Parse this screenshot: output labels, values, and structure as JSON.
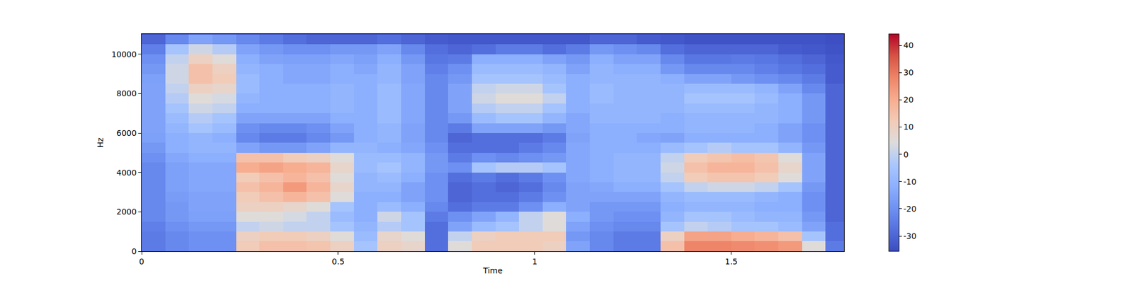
{
  "chart_data": {
    "type": "heatmap",
    "x_label": "Time",
    "y_label": "Hz",
    "x": [
      0,
      0.06,
      0.12,
      0.18,
      0.24,
      0.3,
      0.36,
      0.42,
      0.48,
      0.54,
      0.6,
      0.66,
      0.72,
      0.78,
      0.84,
      0.9,
      0.96,
      1.02,
      1.08,
      1.14,
      1.2,
      1.26,
      1.32,
      1.38,
      1.44,
      1.5,
      1.56,
      1.62,
      1.68,
      1.74,
      1.8
    ],
    "y": [
      0,
      500,
      1000,
      1500,
      2000,
      2500,
      3000,
      3500,
      4000,
      4500,
      5000,
      5500,
      6000,
      6500,
      7000,
      7500,
      8000,
      8500,
      9000,
      9500,
      10000,
      10500,
      11000
    ],
    "z": [
      [
        -25,
        -22,
        -20,
        -20,
        12,
        15,
        15,
        14,
        10,
        -5,
        10,
        8,
        -28,
        5,
        12,
        12,
        12,
        10,
        -15,
        -22,
        -25,
        -25,
        15,
        28,
        28,
        27,
        26,
        24,
        5,
        -25
      ],
      [
        -25,
        -22,
        -20,
        -20,
        10,
        12,
        12,
        10,
        5,
        -8,
        8,
        5,
        -28,
        0,
        10,
        12,
        12,
        12,
        -18,
        -22,
        -25,
        -25,
        10,
        22,
        22,
        20,
        18,
        15,
        -5,
        -28
      ],
      [
        -24,
        -20,
        -18,
        -18,
        0,
        2,
        0,
        0,
        -5,
        -10,
        -2,
        -5,
        -28,
        -15,
        -8,
        -5,
        0,
        5,
        -15,
        -20,
        -22,
        -22,
        -5,
        0,
        -2,
        -5,
        -5,
        -8,
        -15,
        -28
      ],
      [
        -22,
        -18,
        -16,
        -16,
        5,
        5,
        3,
        0,
        -8,
        -12,
        2,
        -5,
        -25,
        -20,
        -15,
        -10,
        0,
        5,
        -12,
        -18,
        -20,
        -20,
        -10,
        -5,
        -5,
        -8,
        -10,
        -10,
        -18,
        -30
      ],
      [
        -22,
        -18,
        -15,
        -15,
        10,
        10,
        8,
        5,
        -5,
        -12,
        -8,
        -12,
        -22,
        -28,
        -25,
        -25,
        -20,
        -12,
        -15,
        -18,
        -18,
        -18,
        -12,
        -10,
        -10,
        -10,
        -12,
        -12,
        -20,
        -30
      ],
      [
        -22,
        -17,
        -15,
        -15,
        12,
        15,
        18,
        15,
        5,
        -12,
        -12,
        -15,
        -20,
        -30,
        -28,
        -28,
        -25,
        -20,
        -15,
        -15,
        -15,
        -15,
        -10,
        -8,
        -8,
        -8,
        -10,
        -12,
        -20,
        -30
      ],
      [
        -22,
        -16,
        -14,
        -14,
        15,
        18,
        24,
        18,
        8,
        -10,
        -10,
        -15,
        -20,
        -30,
        -28,
        -30,
        -28,
        -22,
        -15,
        -14,
        -12,
        -12,
        -5,
        0,
        2,
        2,
        0,
        -5,
        -18,
        -30
      ],
      [
        -22,
        -16,
        -14,
        -14,
        12,
        15,
        18,
        15,
        5,
        -10,
        -8,
        -12,
        -20,
        -28,
        -25,
        -28,
        -25,
        -20,
        -14,
        -12,
        -10,
        -10,
        0,
        12,
        14,
        14,
        12,
        5,
        -15,
        -30
      ],
      [
        -22,
        -16,
        -14,
        -14,
        20,
        22,
        20,
        18,
        8,
        -8,
        -5,
        -10,
        -18,
        -20,
        -5,
        -2,
        -2,
        -5,
        -14,
        -12,
        -10,
        -10,
        2,
        15,
        18,
        18,
        15,
        8,
        -15,
        -30
      ],
      [
        -20,
        -14,
        -12,
        -12,
        15,
        15,
        12,
        10,
        5,
        -8,
        -8,
        -10,
        -18,
        -25,
        -20,
        -22,
        -20,
        -18,
        -14,
        -12,
        -10,
        -10,
        0,
        12,
        14,
        16,
        14,
        5,
        -15,
        -30
      ],
      [
        -18,
        -12,
        -10,
        -10,
        -15,
        -18,
        -18,
        -15,
        -10,
        -10,
        -12,
        -14,
        -20,
        -28,
        -28,
        -28,
        -25,
        -22,
        -14,
        -12,
        -12,
        -12,
        -8,
        -5,
        -2,
        -5,
        -5,
        -10,
        -18,
        -30
      ],
      [
        -16,
        -12,
        -10,
        -12,
        -22,
        -25,
        -25,
        -22,
        -18,
        -12,
        -10,
        -15,
        -22,
        -30,
        -28,
        -28,
        -28,
        -25,
        -15,
        -12,
        -12,
        -14,
        -15,
        -12,
        -12,
        -12,
        -12,
        -15,
        -20,
        -30
      ],
      [
        -15,
        -10,
        -5,
        -8,
        -20,
        -22,
        -22,
        -20,
        -15,
        -12,
        -10,
        -15,
        -22,
        -25,
        -15,
        -15,
        -15,
        -18,
        -14,
        -12,
        -12,
        -12,
        -12,
        -10,
        -10,
        -10,
        -12,
        -15,
        -20,
        -30
      ],
      [
        -15,
        -8,
        -2,
        -5,
        -15,
        -15,
        -15,
        -15,
        -12,
        -12,
        -8,
        -14,
        -22,
        -18,
        -8,
        -5,
        -5,
        -10,
        -14,
        -10,
        -10,
        -10,
        -12,
        -10,
        -10,
        -10,
        -10,
        -12,
        -18,
        -30
      ],
      [
        -15,
        -5,
        2,
        0,
        -12,
        -12,
        -12,
        -12,
        -10,
        -12,
        -8,
        -14,
        -22,
        -15,
        -2,
        0,
        0,
        -5,
        -12,
        -10,
        -10,
        -10,
        -10,
        -8,
        -8,
        -8,
        -10,
        -12,
        -18,
        -30
      ],
      [
        -15,
        -2,
        5,
        3,
        -10,
        -12,
        -12,
        -12,
        -10,
        -12,
        -8,
        -14,
        -22,
        -15,
        2,
        5,
        5,
        0,
        -12,
        -8,
        -10,
        -10,
        -10,
        -5,
        -5,
        -5,
        -8,
        -12,
        -18,
        -30
      ],
      [
        -15,
        0,
        10,
        8,
        -8,
        -12,
        -12,
        -12,
        -10,
        -12,
        -8,
        -14,
        -22,
        -15,
        0,
        2,
        2,
        -5,
        -12,
        -8,
        -10,
        -10,
        -10,
        -8,
        -8,
        -8,
        -10,
        -15,
        -22,
        -30
      ],
      [
        -16,
        2,
        15,
        12,
        -8,
        -12,
        -14,
        -14,
        -12,
        -12,
        -10,
        -15,
        -22,
        -18,
        -5,
        -5,
        -5,
        -8,
        -12,
        -10,
        -10,
        -10,
        -12,
        -15,
        -15,
        -18,
        -20,
        -22,
        -25,
        -32
      ],
      [
        -18,
        2,
        15,
        10,
        -10,
        -12,
        -14,
        -14,
        -12,
        -14,
        -10,
        -15,
        -24,
        -20,
        -8,
        -8,
        -8,
        -10,
        -15,
        -10,
        -12,
        -12,
        -18,
        -22,
        -22,
        -22,
        -24,
        -26,
        -28,
        -32
      ],
      [
        -20,
        0,
        10,
        5,
        -12,
        -15,
        -16,
        -16,
        -14,
        -16,
        -12,
        -18,
        -26,
        -25,
        -12,
        -12,
        -12,
        -15,
        -18,
        -12,
        -15,
        -15,
        -22,
        -26,
        -26,
        -25,
        -26,
        -28,
        -30,
        -33
      ],
      [
        -24,
        -5,
        2,
        -2,
        -15,
        -18,
        -20,
        -20,
        -18,
        -18,
        -15,
        -22,
        -28,
        -30,
        -28,
        -25,
        -25,
        -28,
        -25,
        -18,
        -20,
        -22,
        -28,
        -30,
        -30,
        -30,
        -30,
        -32,
        -33,
        -34
      ],
      [
        -30,
        -22,
        -15,
        -18,
        -22,
        -25,
        -28,
        -30,
        -30,
        -30,
        -28,
        -30,
        -32,
        -33,
        -33,
        -33,
        -33,
        -33,
        -33,
        -30,
        -30,
        -32,
        -33,
        -34,
        -34,
        -34,
        -34,
        -34,
        -34,
        -35
      ]
    ],
    "xlim": [
      0,
      1.787
    ],
    "ylim": [
      0,
      11025
    ],
    "xticks": [
      0,
      0.5,
      1,
      1.5
    ],
    "yticks": [
      0,
      2000,
      4000,
      6000,
      8000,
      10000
    ],
    "zlim": [
      -35.6,
      44.2
    ],
    "zticks": [
      -30,
      -20,
      -10,
      0,
      10,
      20,
      30,
      40
    ]
  }
}
